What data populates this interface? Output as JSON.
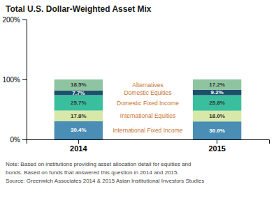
{
  "chart_data": {
    "type": "bar",
    "title": "Total U.S. Dollar-Weighted Asset Mix",
    "categories": [
      "2014",
      "2015"
    ],
    "stacked": true,
    "data_labels": true,
    "series": [
      {
        "name": "International Fixed Income",
        "color": "#4a8db5",
        "values": [
          30.4,
          30.0
        ],
        "value_labels": [
          "30.4%",
          "30.0%"
        ]
      },
      {
        "name": "International Equities",
        "color": "#d8e8a8",
        "values": [
          17.8,
          18.0
        ],
        "value_labels": [
          "17.8%",
          "18.0%"
        ]
      },
      {
        "name": "Domestic Fixed Income",
        "color": "#3abf9e",
        "values": [
          25.7,
          25.8
        ],
        "value_labels": [
          "25.7%",
          "25.8%"
        ]
      },
      {
        "name": "Domestic Equities",
        "color": "#1c4f6b",
        "values": [
          7.7,
          9.2
        ],
        "value_labels": [
          "7.7%",
          "9.2%"
        ]
      },
      {
        "name": "Alternatives",
        "color": "#8ec5a0",
        "values": [
          18.5,
          17.2
        ],
        "value_labels": [
          "18.5%",
          "17.2%"
        ]
      }
    ],
    "ylim": [
      0,
      200
    ],
    "yticks": [
      {
        "value": 0,
        "label": "0%"
      },
      {
        "value": 100,
        "label": "100%"
      },
      {
        "value": 200,
        "label": "200%"
      }
    ],
    "grid": false,
    "annotations": [
      "Note: Based on institutions providing asset allocation detail for equities and",
      "bonds. Based on funds that answered this question in 2014 and 2015.",
      "Source: Greenwich Associates 2014 & 2015 Asian Institutional Investors Studies"
    ]
  }
}
